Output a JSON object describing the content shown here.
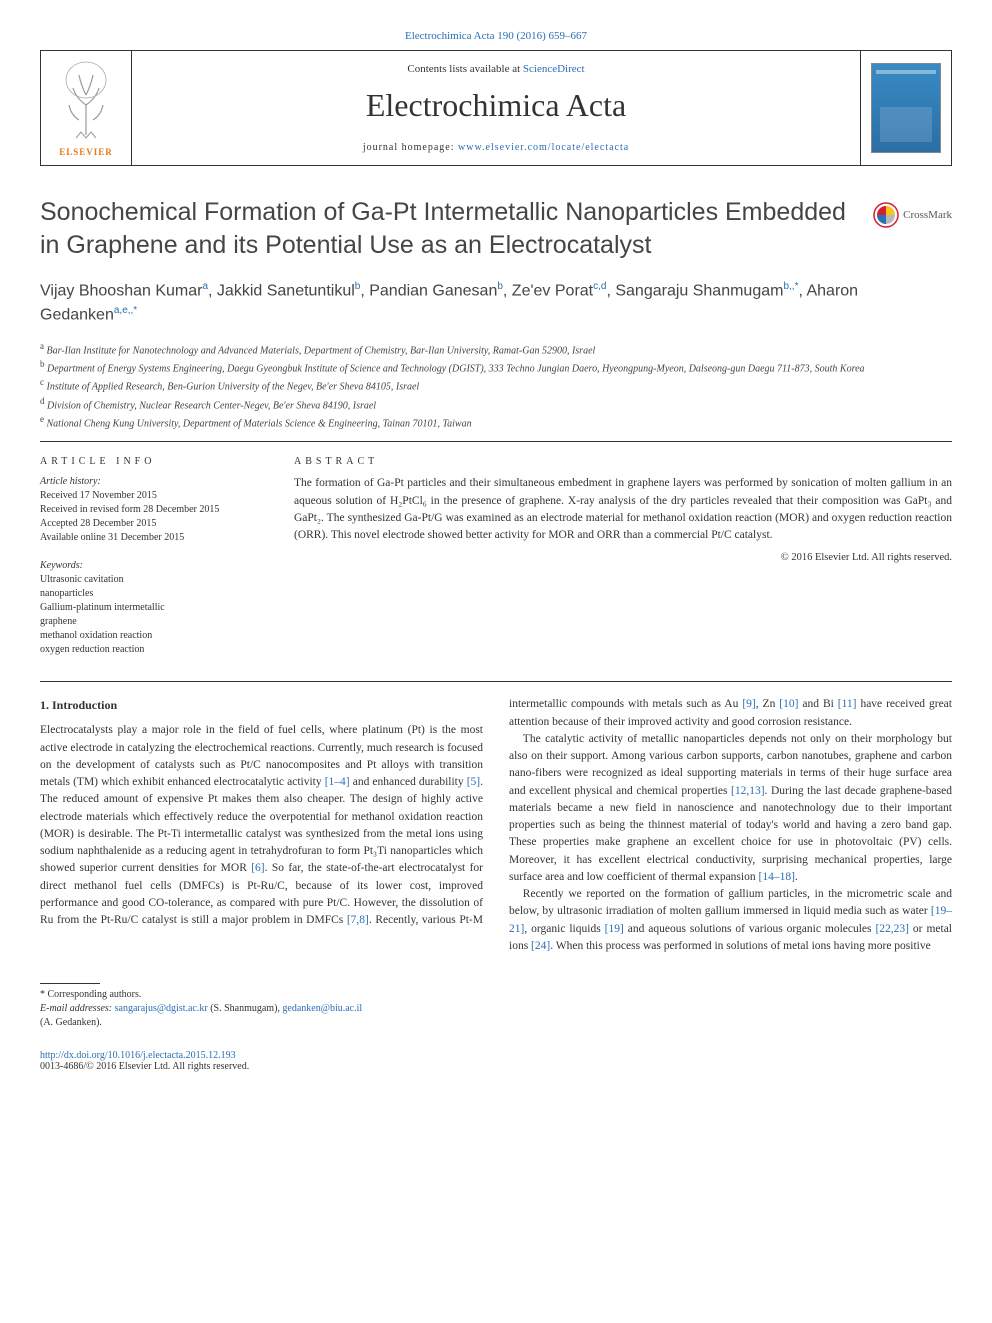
{
  "journal": {
    "top_link_text": "Electrochimica Acta 190 (2016) 659–667",
    "contents_text": "Contents lists available at ",
    "contents_link": "ScienceDirect",
    "name": "Electrochimica Acta",
    "homepage_label": "journal homepage: ",
    "homepage_url": "www.elsevier.com/locate/electacta",
    "publisher_logo_text": "ELSEVIER"
  },
  "colors": {
    "link": "#2a6eb5",
    "elsevier_orange": "#e67817",
    "text": "#333333",
    "heading": "#454545",
    "cover_gradient_top": "#3a8ac4",
    "cover_gradient_bottom": "#2a6ea5",
    "crossmark_red": "#d1202f",
    "crossmark_yellow": "#f5c518",
    "crossmark_blue": "#2a6eb5",
    "crossmark_grey": "#b8b8b8"
  },
  "article": {
    "title": "Sonochemical Formation of Ga-Pt Intermetallic Nanoparticles Embedded in Graphene and its Potential Use as an Electrocatalyst",
    "crossmark_label": "CrossMark",
    "authors_html": "Vijay Bhooshan Kumar|a|, Jakkid Sanetuntikul|b|, Pandian Ganesan|b|, Ze'ev Porat|c,d|, Sangaraju Shanmugam|b,*|, Aharon Gedanken|a,e,*|",
    "affiliations": [
      {
        "sup": "a",
        "text": "Bar-Ilan Institute for Nanotechnology and Advanced Materials, Department of Chemistry, Bar-Ilan University, Ramat-Gan 52900, Israel"
      },
      {
        "sup": "b",
        "text": "Department of Energy Systems Engineering, Daegu Gyeongbuk Institute of Science and Technology (DGIST), 333 Techno Jungian Daero, Hyeongpung-Myeon, Dalseong-gun Daegu 711-873, South Korea"
      },
      {
        "sup": "c",
        "text": "Institute of Applied Research, Ben-Gurion University of the Negev, Be'er Sheva 84105, Israel"
      },
      {
        "sup": "d",
        "text": "Division of Chemistry, Nuclear Research Center-Negev, Be'er Sheva 84190, Israel"
      },
      {
        "sup": "e",
        "text": "National Cheng Kung University, Department of Materials Science & Engineering, Tainan 70101, Taiwan"
      }
    ]
  },
  "info": {
    "heading": "ARTICLE INFO",
    "history_label": "Article history:",
    "history": [
      "Received 17 November 2015",
      "Received in revised form 28 December 2015",
      "Accepted 28 December 2015",
      "Available online 31 December 2015"
    ],
    "keywords_label": "Keywords:",
    "keywords": [
      "Ultrasonic cavitation",
      "nanoparticles",
      "Gallium-platinum intermetallic",
      "graphene",
      "methanol oxidation reaction",
      "oxygen reduction reaction"
    ]
  },
  "abstract": {
    "heading": "ABSTRACT",
    "text": "The formation of Ga-Pt particles and their simultaneous embedment in graphene layers was performed by sonication of molten gallium in an aqueous solution of H₂PtCl₆ in the presence of graphene. X-ray analysis of the dry particles revealed that their composition was GaPt₃ and GaPt₂. The synthesized Ga-Pt/G was examined as an electrode material for methanol oxidation reaction (MOR) and oxygen reduction reaction (ORR). This novel electrode showed better activity for MOR and ORR than a commercial Pt/C catalyst.",
    "copyright": "© 2016 Elsevier Ltd. All rights reserved."
  },
  "body": {
    "section_heading": "1. Introduction",
    "p1": "Electrocatalysts play a major role in the field of fuel cells, where platinum (Pt) is the most active electrode in catalyzing the electrochemical reactions. Currently, much research is focused on the development of catalysts such as Pt/C nanocomposites and Pt alloys with transition metals (TM) which exhibit enhanced electrocatalytic activity ",
    "ref1": "[1–4]",
    "p1b": " and enhanced durability ",
    "ref2": "[5]",
    "p1c": ". The reduced amount of expensive Pt makes them also cheaper. The design of highly active electrode materials which effectively reduce the overpotential for methanol oxidation reaction (MOR) is desirable. The Pt-Ti intermetallic catalyst was synthesized from the metal ions using sodium naphthalenide as a reducing agent in tetrahydrofuran to form Pt₃Ti nanoparticles which showed superior current densities for MOR ",
    "ref3": "[6]",
    "p1d": ". So far, the state-of-the-art electrocatalyst for direct methanol fuel cells (DMFCs) is Pt-Ru/C, because of its lower cost, improved performance and good CO-tolerance, as compared with pure Pt/C. However, the dissolution of ",
    "p2a": "Ru from the Pt-Ru/C catalyst is still a major problem in DMFCs ",
    "ref4": "[7,8]",
    "p2b": ". Recently, various Pt-M intermetallic compounds with metals such as Au ",
    "ref5": "[9]",
    "p2c": ", Zn ",
    "ref6": "[10]",
    "p2d": " and Bi ",
    "ref7": "[11]",
    "p2e": " have received great attention because of their improved activity and good corrosion resistance.",
    "p3a": "The catalytic activity of metallic nanoparticles depends not only on their morphology but also on their support. Among various carbon supports, carbon nanotubes, graphene and carbon nano-fibers were recognized as ideal supporting materials in terms of their huge surface area and excellent physical and chemical properties ",
    "ref8": "[12,13]",
    "p3b": ". During the last decade graphene-based materials became a new field in nanoscience and nanotechnology due to their important properties such as being the thinnest material of today's world and having a zero band gap. These properties make graphene an excellent choice for use in photovoltaic (PV) cells. Moreover, it has excellent electrical conductivity, surprising mechanical properties, large surface area and low coefficient of thermal expansion ",
    "ref9": "[14–18]",
    "p3c": ".",
    "p4a": "Recently we reported on the formation of gallium particles, in the micrometric scale and below, by ultrasonic irradiation of molten gallium immersed in liquid media such as water ",
    "ref10": "[19–21]",
    "p4b": ", organic liquids ",
    "ref11": "[19]",
    "p4c": " and aqueous solutions of various organic molecules ",
    "ref12": "[22,23]",
    "p4d": " or metal ions ",
    "ref13": "[24]",
    "p4e": ". When this process was performed in solutions of metal ions having more positive"
  },
  "footer": {
    "corr_label": "* Corresponding authors.",
    "email_label": "E-mail addresses: ",
    "email1": "sangarajus@dgist.ac.kr",
    "name1": " (S. Shanmugam), ",
    "email2": "gedanken@biu.ac.il",
    "name2": " (A. Gedanken).",
    "doi": "http://dx.doi.org/10.1016/j.electacta.2015.12.193",
    "issn_copy": "0013-4686/© 2016 Elsevier Ltd. All rights reserved."
  }
}
